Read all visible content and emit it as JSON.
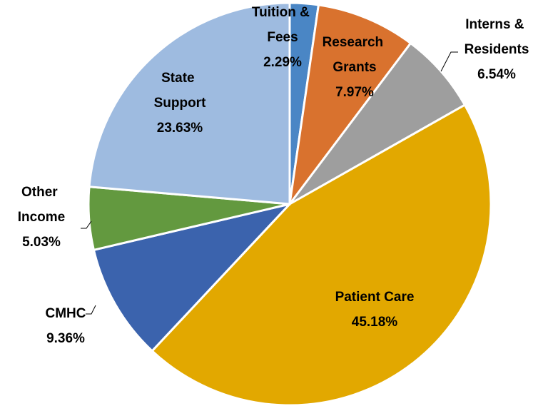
{
  "chart_data": {
    "type": "pie",
    "categories": [
      "Tuition & Fees",
      "Research Grants",
      "Interns & Residents",
      "Patient Care",
      "CMHC",
      "Other Income",
      "State Support"
    ],
    "values": [
      2.29,
      7.97,
      6.54,
      45.18,
      9.36,
      5.03,
      23.63
    ],
    "value_labels": [
      "2.29%",
      "7.97%",
      "6.54%",
      "45.18%",
      "9.36%",
      "5.03%",
      "23.63%"
    ],
    "colors": [
      "#4a86c5",
      "#d9722e",
      "#9e9e9e",
      "#e2a800",
      "#3b63ad",
      "#63993f",
      "#9ebbe0"
    ]
  }
}
